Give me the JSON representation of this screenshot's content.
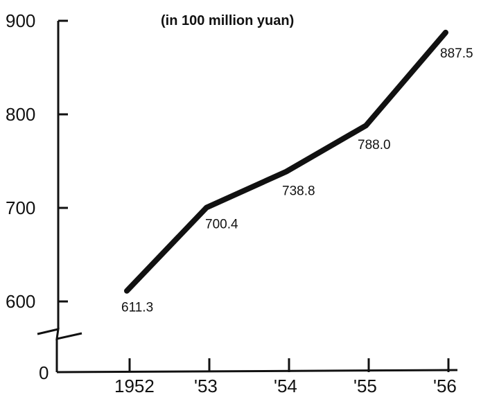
{
  "chart_data": {
    "type": "line",
    "unit_label": "(in 100 million yuan)",
    "categories": [
      "1952",
      "'53",
      "'54",
      "'55",
      "'56"
    ],
    "series": [
      {
        "values": [
          611.3,
          700.4,
          738.8,
          788.0,
          887.5
        ]
      }
    ],
    "data_labels": [
      "611.3",
      "700.4",
      "738.8",
      "788.0",
      "887.5"
    ],
    "y_ticks": [
      {
        "value": 600,
        "label": "600"
      },
      {
        "value": 700,
        "label": "700"
      },
      {
        "value": 800,
        "label": "800"
      },
      {
        "value": 900,
        "label": "900"
      }
    ],
    "y_zero_label": "0",
    "ylim": [
      600,
      900
    ],
    "axis_break": true,
    "grid": false,
    "legend": "none",
    "line_color": "#111111"
  }
}
